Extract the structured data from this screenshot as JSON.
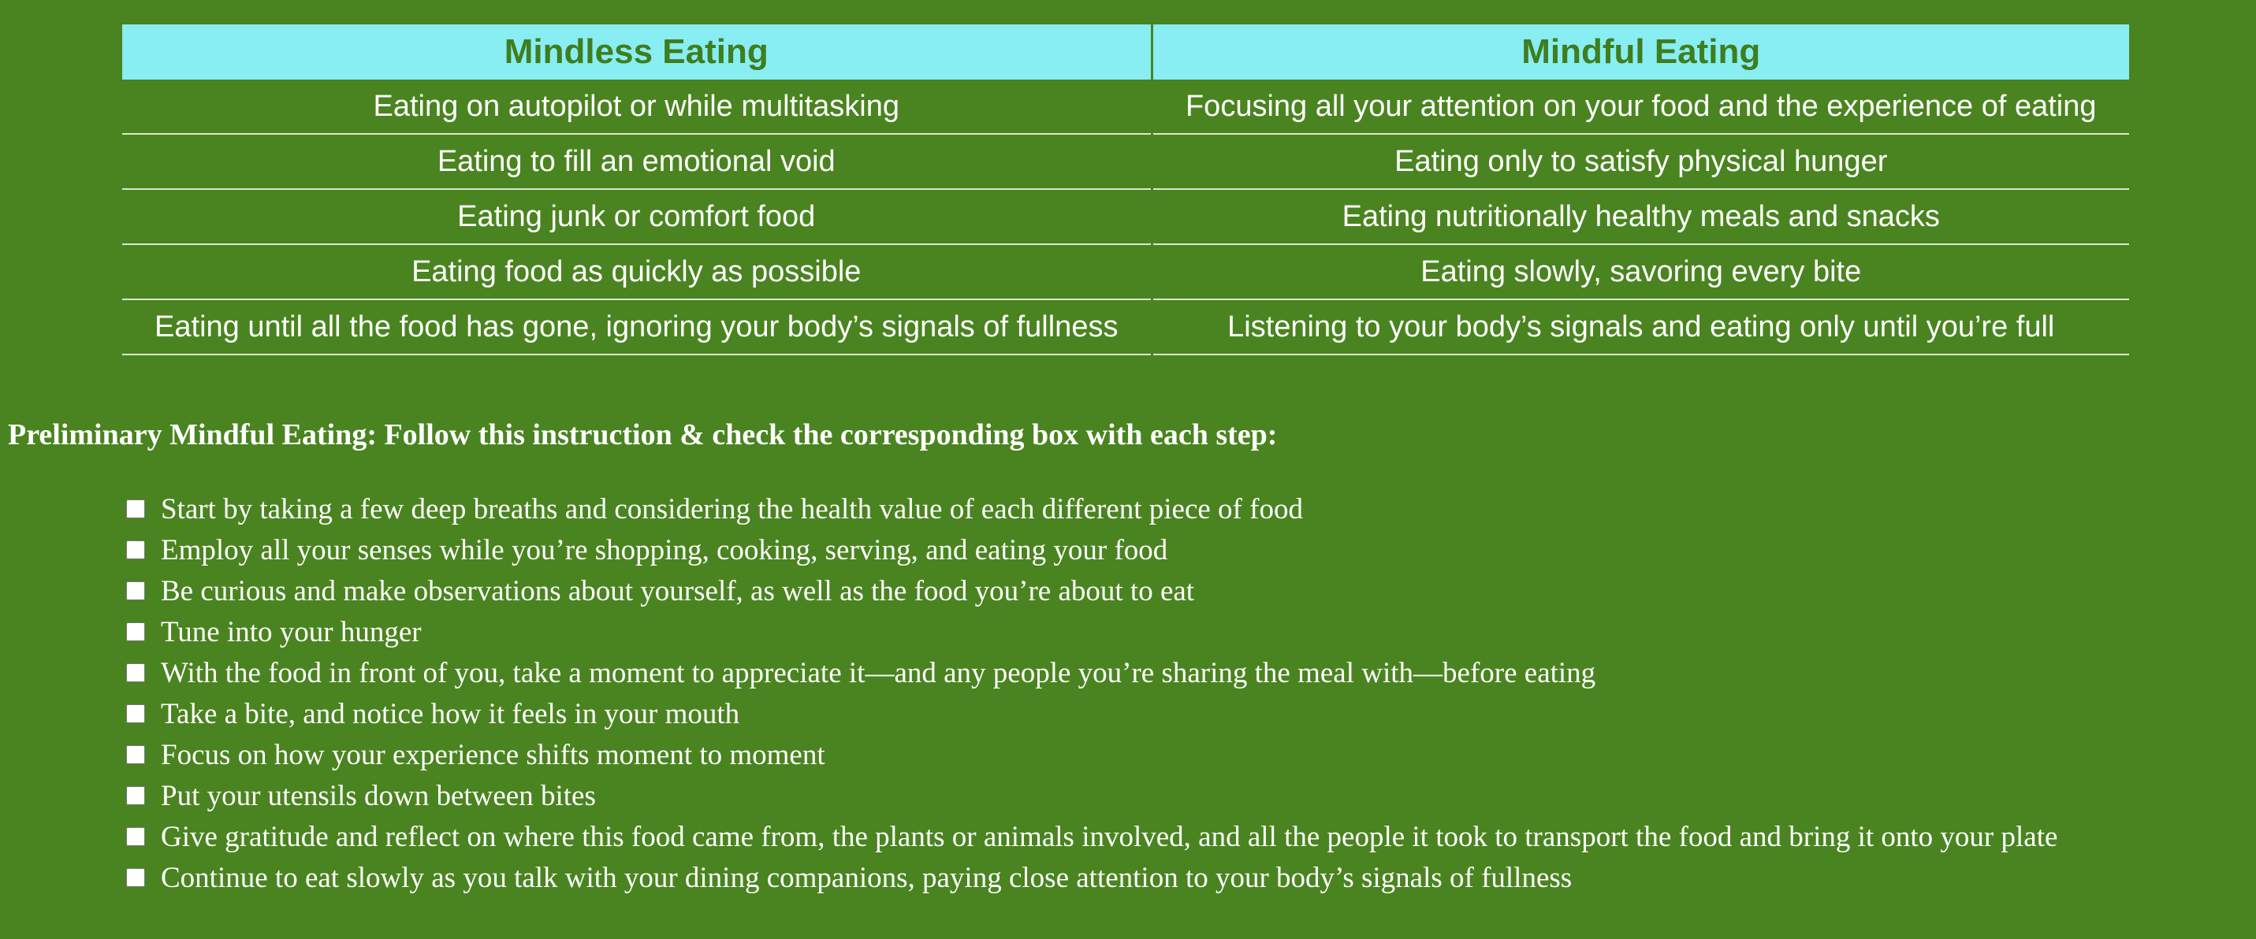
{
  "comparison_table": {
    "headers": [
      "Mindless Eating",
      "Mindful Eating"
    ],
    "rows": [
      [
        "Eating on autopilot or while multitasking",
        "Focusing all your attention on your food and the experience of eating"
      ],
      [
        "Eating to fill an emotional void",
        "Eating only to satisfy physical hunger"
      ],
      [
        "Eating junk or comfort food",
        "Eating nutritionally healthy meals and snacks"
      ],
      [
        "Eating food as quickly as possible",
        "Eating slowly, savoring every bite"
      ],
      [
        "Eating until all the food has gone, ignoring your body’s signals of fullness",
        "Listening to your body’s signals and eating only until you’re full"
      ]
    ]
  },
  "checklist": {
    "title": "Preliminary Mindful Eating: Follow this instruction & check the corresponding box with each step:",
    "items": [
      {
        "label": "Start by taking a few deep breaths and considering the health value of each different piece of food",
        "checked": false
      },
      {
        "label": "Employ all your senses while you’re shopping, cooking, serving, and eating your food",
        "checked": false
      },
      {
        "label": "Be curious and make observations about yourself, as well as the food you’re about to eat",
        "checked": false
      },
      {
        "label": "Tune into your hunger",
        "checked": false
      },
      {
        "label": "With the food in front of you, take a moment to appreciate it—and any people you’re sharing the meal with—before eating",
        "checked": false
      },
      {
        "label": "Take a bite, and notice how it feels in your mouth",
        "checked": false
      },
      {
        "label": "Focus on how your experience shifts moment to moment",
        "checked": false
      },
      {
        "label": "Put your utensils down between bites",
        "checked": false
      },
      {
        "label": "Give gratitude and reflect on where this food came from, the plants or animals involved, and all the people it took to transport the food and bring it onto your plate",
        "checked": false
      },
      {
        "label": "Continue to eat slowly as you talk with your dining companions, paying close attention to your body’s signals of fullness",
        "checked": false
      }
    ]
  },
  "colors": {
    "background": "#4a8420",
    "header_background": "#88eef2",
    "header_text": "#3f7d1e",
    "body_text": "#ffffff"
  }
}
